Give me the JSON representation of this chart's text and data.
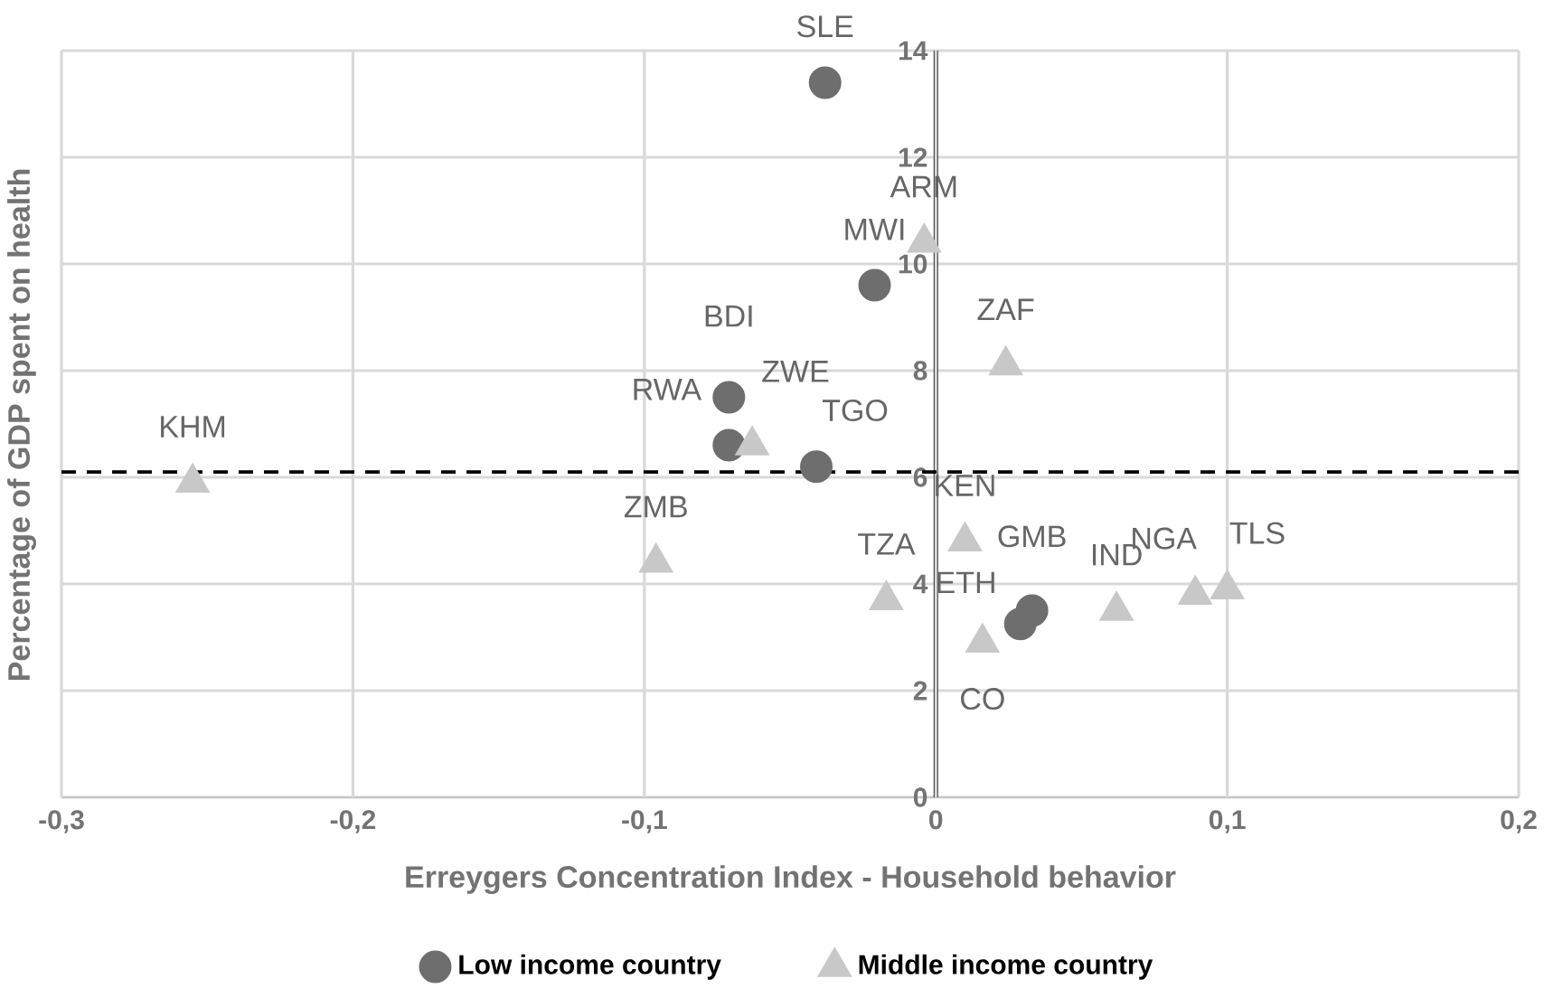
{
  "chart_data": {
    "type": "scatter",
    "xlabel": "Erreygers Concentration Index - Household behavior",
    "ylabel": "Percentage of GDP spent on health",
    "xlim": [
      -0.3,
      0.2
    ],
    "xticks": [
      {
        "value": -0.3,
        "label": "-0,3"
      },
      {
        "value": -0.2,
        "label": "-0,2"
      },
      {
        "value": -0.1,
        "label": "-0,1"
      },
      0,
      {
        "value": 0.1,
        "label": "0,1"
      },
      {
        "value": 0.2,
        "label": "0,2"
      }
    ],
    "ylim": [
      0,
      14
    ],
    "yticks": [
      0,
      2,
      4,
      6,
      8,
      10,
      12,
      14
    ],
    "grid": true,
    "legend": "bottom",
    "series": [
      {
        "name": "Low income country",
        "color": "#6e6e6e",
        "marker": "circle",
        "x": [
          -0.038,
          -0.021,
          -0.071,
          -0.071,
          -0.041,
          0.029,
          0.033
        ],
        "values": [
          13.4,
          9.6,
          7.5,
          6.6,
          6.2,
          3.25,
          3.5
        ]
      },
      {
        "name": "Middle income country",
        "color": "#c8c8c8",
        "marker": "triangle",
        "x": [
          -0.255,
          -0.096,
          -0.063,
          -0.004,
          0.024,
          0.01,
          -0.017,
          0.016,
          0.062,
          0.089,
          0.1
        ],
        "values": [
          5.9,
          4.4,
          6.6,
          10.4,
          8.1,
          4.8,
          3.7,
          2.9,
          3.5,
          3.8,
          3.9
        ]
      }
    ],
    "ref_lines": [
      {
        "axis": "y",
        "value": 6.1,
        "color": "#000000",
        "line_style": "dashed"
      }
    ],
    "annotations": [
      {
        "text": "SLE",
        "x": -0.038,
        "y": 13.4
      },
      {
        "text": "MWI",
        "x": -0.021,
        "y": 9.6
      },
      {
        "text": "BDI",
        "x": -0.071,
        "y": 7.5
      },
      {
        "text": "RWA",
        "x": -0.071,
        "y": 6.6
      },
      {
        "text": "TGO",
        "x": -0.041,
        "y": 6.2
      },
      {
        "text": "ETH",
        "x": 0.029,
        "y": 3.25
      },
      {
        "text": "GMB",
        "x": 0.033,
        "y": 3.5
      },
      {
        "text": "KHM",
        "x": -0.255,
        "y": 5.9
      },
      {
        "text": "ZMB",
        "x": -0.096,
        "y": 4.4
      },
      {
        "text": "ZWE",
        "x": -0.063,
        "y": 6.6
      },
      {
        "text": "ARM",
        "x": -0.004,
        "y": 10.4
      },
      {
        "text": "ZAF",
        "x": 0.024,
        "y": 8.1
      },
      {
        "text": "KEN",
        "x": 0.01,
        "y": 4.8
      },
      {
        "text": "TZA",
        "x": -0.017,
        "y": 3.7
      },
      {
        "text": "CO",
        "x": 0.016,
        "y": 2.9
      },
      {
        "text": "IND",
        "x": 0.062,
        "y": 3.5
      },
      {
        "text": "NGA",
        "x": 0.089,
        "y": 3.8
      },
      {
        "text": "TLS",
        "x": 0.1,
        "y": 3.9
      }
    ]
  }
}
